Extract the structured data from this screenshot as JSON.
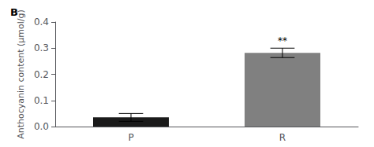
{
  "chart_data": {
    "type": "bar",
    "title": "B",
    "categories": [
      "P",
      "R"
    ],
    "values": [
      0.035,
      0.282
    ],
    "errors": [
      0.015,
      0.018
    ],
    "colors": [
      "#1a1a1a",
      "#808080"
    ],
    "ylabel": "Anthocyanin content (μmol/g)",
    "ylim": [
      0,
      0.4
    ],
    "yticks": [
      {
        "value": 0.0,
        "label": "0.0"
      },
      0.1,
      0.2,
      0.3,
      0.4
    ],
    "annotations": [
      {
        "category": "R",
        "text": "**"
      }
    ],
    "grid": false
  }
}
